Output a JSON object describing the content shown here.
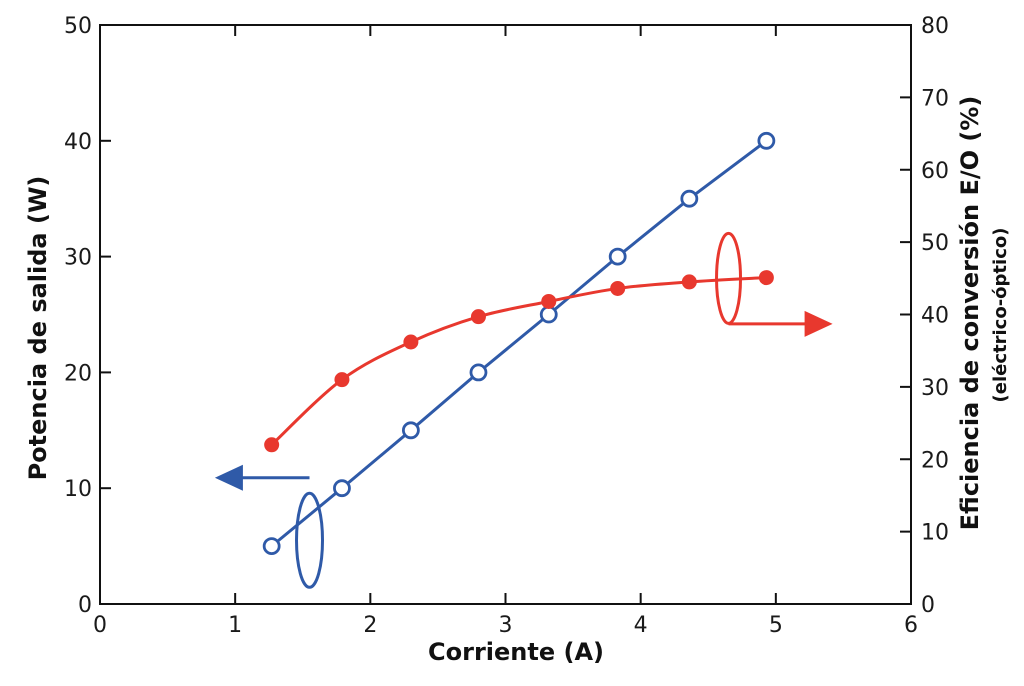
{
  "chart_data": {
    "type": "line",
    "xlabel": "Corriente (A)",
    "ylabel_left": "Potencia de salida (W)",
    "ylabel_right": "Eficiencia de conversión E/O (%)",
    "ylabel_right_sub": "(eléctrico-óptico)",
    "xlim": [
      0,
      6
    ],
    "ylim_left": [
      0,
      50
    ],
    "ylim_right": [
      0,
      80
    ],
    "x_ticks": [
      0,
      1,
      2,
      3,
      4,
      5,
      6
    ],
    "y_left_ticks": [
      0,
      10,
      20,
      30,
      40,
      50
    ],
    "y_right_ticks": [
      0,
      10,
      20,
      30,
      40,
      50,
      60,
      70,
      80
    ],
    "grid": false,
    "series": [
      {
        "axis": "left",
        "color": "#2f5aa8",
        "marker": "open-circle",
        "x": [
          1.27,
          1.79,
          2.3,
          2.8,
          3.32,
          3.83,
          4.36,
          4.93
        ],
        "y": [
          5,
          10,
          15,
          20,
          25,
          30,
          35,
          40
        ]
      },
      {
        "axis": "right",
        "color": "#e8382e",
        "marker": "filled-circle",
        "x": [
          1.27,
          1.79,
          2.3,
          2.8,
          3.32,
          3.83,
          4.36,
          4.93
        ],
        "y": [
          22,
          31,
          36.2,
          39.7,
          41.8,
          43.6,
          44.5,
          45.1
        ]
      }
    ],
    "annotations": [
      {
        "type": "axis-pointer-arrow",
        "series": 0,
        "points_to": "left"
      },
      {
        "type": "axis-pointer-arrow",
        "series": 1,
        "points_to": "right"
      }
    ]
  }
}
